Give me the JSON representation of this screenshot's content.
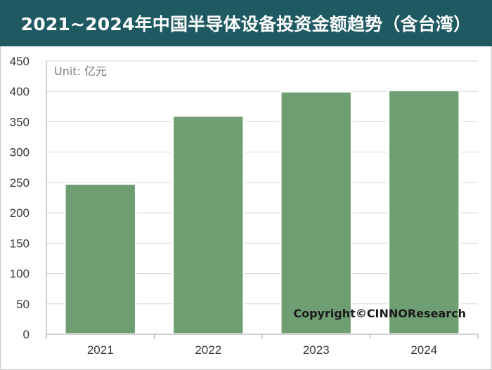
{
  "chart_data": {
    "type": "bar",
    "title": "2021~2024年中国半导体设备投资金额趋势（含台湾）",
    "unit_label": "Unit: 亿元",
    "categories": [
      "2021",
      "2022",
      "2023",
      "2024"
    ],
    "values": [
      248,
      360,
      400,
      402
    ],
    "ylim": [
      0,
      450
    ],
    "yticks": [
      0,
      50,
      100,
      150,
      200,
      250,
      300,
      350,
      400,
      450
    ],
    "xlabel": "",
    "ylabel": "",
    "grid": true,
    "legend": "none",
    "bar_color": "#6e9e72",
    "bar_outline_color": "#ffffff",
    "title_bar_color": "#1f5a63",
    "copyright": "Copyright©CINNOResearch"
  }
}
